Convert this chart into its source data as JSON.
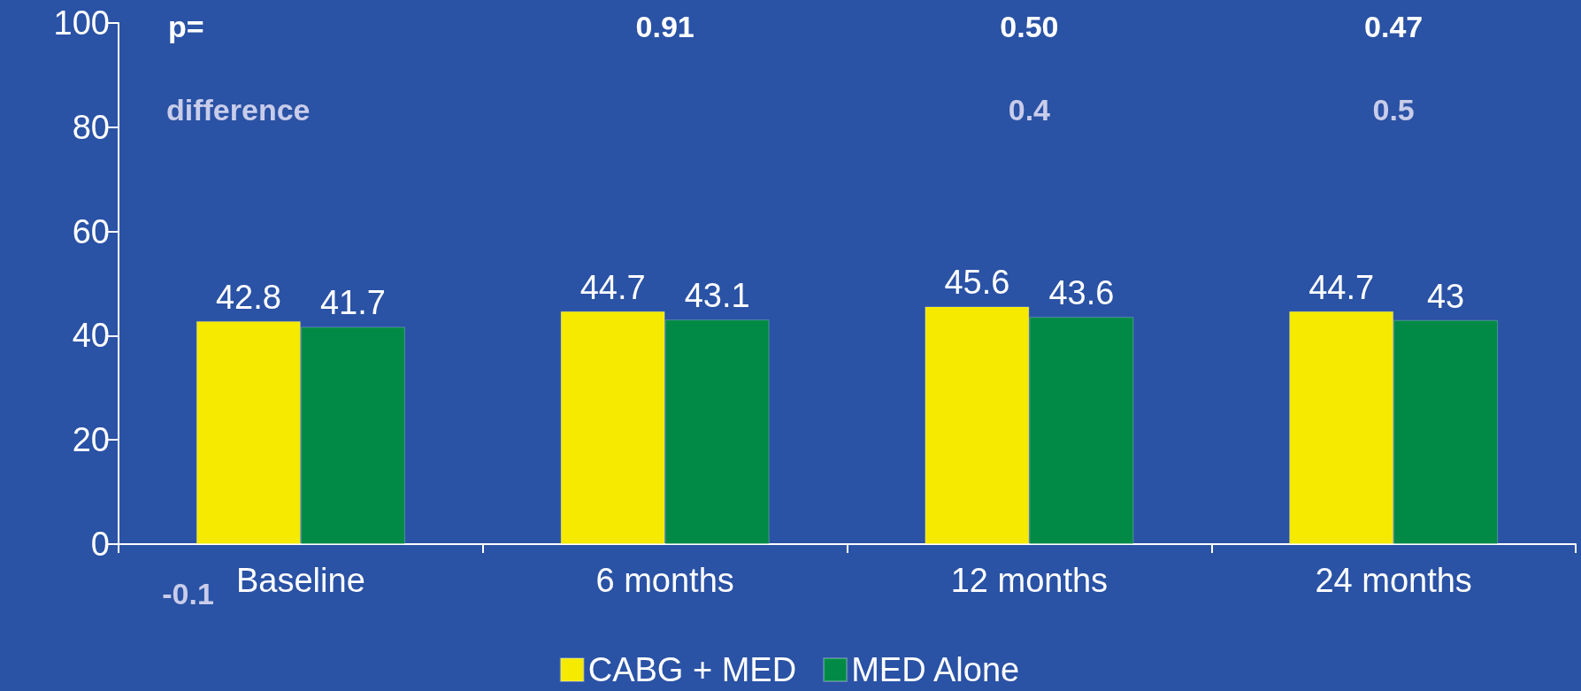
{
  "chart_data": {
    "type": "bar",
    "categories": [
      "Baseline",
      "6 months",
      "12 months",
      "24 months"
    ],
    "series": [
      {
        "name": "CABG + MED",
        "color": "#f5ea00",
        "values": [
          42.8,
          44.7,
          45.6,
          44.7
        ]
      },
      {
        "name": "MED Alone",
        "color": "#008a45",
        "values": [
          41.7,
          43.1,
          43.6,
          43
        ]
      }
    ],
    "ylim": [
      0,
      100
    ],
    "yticks": [
      0,
      20,
      40,
      60,
      80,
      100
    ],
    "data_labels": true,
    "grid": false,
    "legend": "bottom",
    "annotations": [
      "p=",
      "difference",
      "-0.1",
      "0.91",
      "0.50",
      "0.47",
      "0.4",
      "0.5"
    ]
  }
}
